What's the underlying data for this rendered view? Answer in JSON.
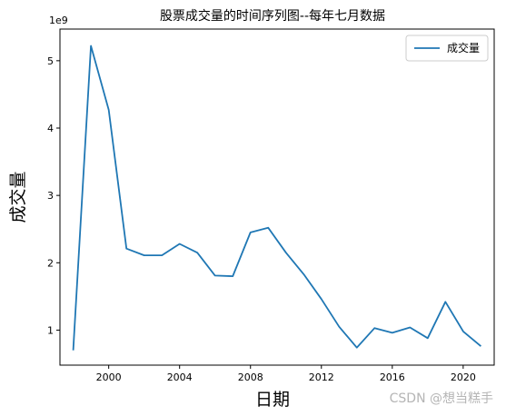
{
  "chart_data": {
    "type": "line",
    "title": "股票成交量的时间序列图--每年七月数据",
    "xlabel": "日期",
    "ylabel": "成交量",
    "y_scale_label": "1e9",
    "x_ticks": [
      2000,
      2004,
      2008,
      2012,
      2016,
      2020
    ],
    "y_ticks": [
      1,
      2,
      3,
      4,
      5
    ],
    "xlim": [
      1997.25,
      2021.75
    ],
    "ylim": [
      0.48,
      5.47
    ],
    "grid": false,
    "legend_position": "top-right",
    "series": [
      {
        "name": "成交量",
        "color": "#1f77b4",
        "x": [
          1998,
          1999,
          2000,
          2001,
          2002,
          2003,
          2004,
          2005,
          2006,
          2007,
          2008,
          2009,
          2010,
          2011,
          2012,
          2013,
          2014,
          2015,
          2016,
          2017,
          2018,
          2019,
          2020,
          2021
        ],
        "y": [
          0.7,
          5.22,
          4.27,
          2.21,
          2.11,
          2.11,
          2.28,
          2.15,
          1.81,
          1.8,
          2.45,
          2.52,
          2.15,
          1.83,
          1.46,
          1.05,
          0.74,
          1.03,
          0.96,
          1.04,
          0.88,
          1.42,
          0.98,
          0.76
        ]
      }
    ]
  },
  "watermark": "CSDN @想当糕手"
}
